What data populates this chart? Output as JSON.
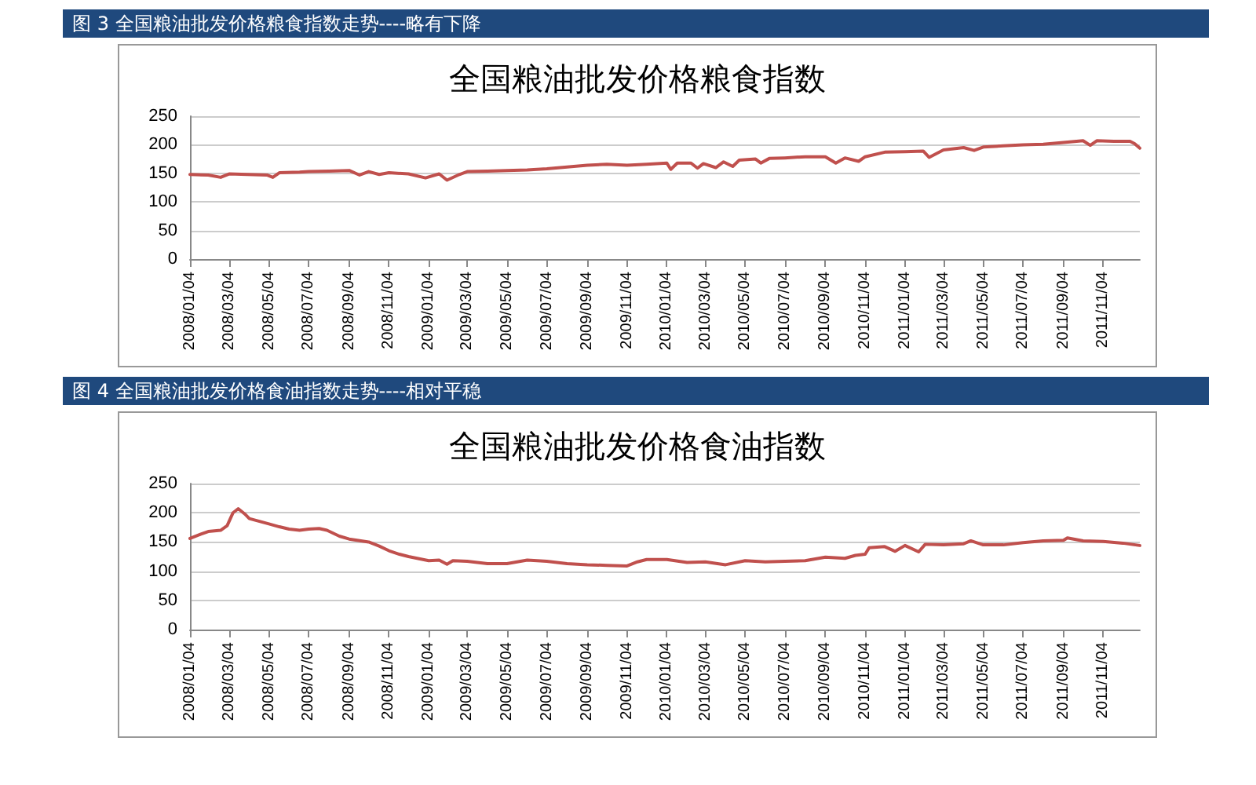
{
  "chart_data": [
    {
      "type": "line",
      "title": "全国粮油批发价格粮食指数",
      "subtitle": "图 3 全国粮油批发价格粮食指数走势----略有下降",
      "x": [
        "2008-01-04",
        "2008-02-01",
        "2008-02-20",
        "2008-03-04",
        "2008-04-01",
        "2008-05-01",
        "2008-05-10",
        "2008-05-20",
        "2008-06-20",
        "2008-07-04",
        "2008-08-04",
        "2008-09-04",
        "2008-09-20",
        "2008-10-04",
        "2008-10-20",
        "2008-11-04",
        "2008-12-04",
        "2008-12-30",
        "2009-01-20",
        "2009-02-01",
        "2009-02-20",
        "2009-03-04",
        "2009-04-04",
        "2009-05-04",
        "2009-06-04",
        "2009-07-04",
        "2009-08-04",
        "2009-09-04",
        "2009-10-04",
        "2009-11-04",
        "2009-12-04",
        "2010-01-04",
        "2010-01-10",
        "2010-01-20",
        "2010-02-10",
        "2010-02-20",
        "2010-03-01",
        "2010-03-20",
        "2010-04-01",
        "2010-04-15",
        "2010-04-25",
        "2010-05-20",
        "2010-05-28",
        "2010-06-10",
        "2010-07-04",
        "2010-08-04",
        "2010-09-04",
        "2010-09-20",
        "2010-10-04",
        "2010-10-25",
        "2010-11-04",
        "2010-12-04",
        "2011-01-04",
        "2011-02-01",
        "2011-02-10",
        "2011-03-04",
        "2011-04-04",
        "2011-04-20",
        "2011-05-04",
        "2011-06-04",
        "2011-07-04",
        "2011-08-04",
        "2011-09-04",
        "2011-10-04",
        "2011-10-15",
        "2011-10-25",
        "2011-11-20",
        "2011-12-15",
        "2011-12-22",
        "2011-12-30"
      ],
      "series": [
        {
          "color": "#c0504d",
          "values": [
            148,
            147,
            143,
            149,
            148,
            147,
            143,
            151,
            152,
            153,
            154,
            155,
            147,
            153,
            148,
            151,
            149,
            142,
            149,
            138,
            148,
            153,
            154,
            155,
            156,
            158,
            161,
            164,
            166,
            164,
            166,
            168,
            157,
            168,
            168,
            159,
            167,
            160,
            170,
            162,
            173,
            175,
            168,
            176,
            177,
            179,
            179,
            168,
            177,
            171,
            179,
            187,
            188,
            189,
            178,
            191,
            195,
            190,
            196,
            198,
            200,
            201,
            204,
            207,
            199,
            207,
            206,
            206,
            202,
            194
          ]
        }
      ],
      "xlim": [
        "2008-01-04",
        "2011-12-30"
      ],
      "xticks": [
        {
          "value": "2008-01-04",
          "label": "2008/01/04"
        },
        {
          "value": "2008-03-04",
          "label": "2008/03/04"
        },
        {
          "value": "2008-05-04",
          "label": "2008/05/04"
        },
        {
          "value": "2008-07-04",
          "label": "2008/07/04"
        },
        {
          "value": "2008-09-04",
          "label": "2008/09/04"
        },
        {
          "value": "2008-11-04",
          "label": "2008/11/04"
        },
        {
          "value": "2009-01-04",
          "label": "2009/01/04"
        },
        {
          "value": "2009-03-04",
          "label": "2009/03/04"
        },
        {
          "value": "2009-05-04",
          "label": "2009/05/04"
        },
        {
          "value": "2009-07-04",
          "label": "2009/07/04"
        },
        {
          "value": "2009-09-04",
          "label": "2009/09/04"
        },
        {
          "value": "2009-11-04",
          "label": "2009/11/04"
        },
        {
          "value": "2010-01-04",
          "label": "2010/01/04"
        },
        {
          "value": "2010-03-04",
          "label": "2010/03/04"
        },
        {
          "value": "2010-05-04",
          "label": "2010/05/04"
        },
        {
          "value": "2010-07-04",
          "label": "2010/07/04"
        },
        {
          "value": "2010-09-04",
          "label": "2010/09/04"
        },
        {
          "value": "2010-11-04",
          "label": "2010/11/04"
        },
        {
          "value": "2011-01-04",
          "label": "2011/01/04"
        },
        {
          "value": "2011-03-04",
          "label": "2011/03/04"
        },
        {
          "value": "2011-05-04",
          "label": "2011/05/04"
        },
        {
          "value": "2011-07-04",
          "label": "2011/07/04"
        },
        {
          "value": "2011-09-04",
          "label": "2011/09/04"
        },
        {
          "value": "2011-11-04",
          "label": "2011/11/04"
        }
      ],
      "ylim": [
        0,
        250
      ],
      "yticks": [
        0,
        50,
        100,
        150,
        200,
        250
      ],
      "grid": "y",
      "marker": "none",
      "line_style": "solid"
    },
    {
      "type": "line",
      "title": "全国粮油批发价格食油指数",
      "subtitle": "图 4 全国粮油批发价格食油指数走势----相对平稳",
      "x": [
        "2008-01-04",
        "2008-01-20",
        "2008-02-01",
        "2008-02-20",
        "2008-03-01",
        "2008-03-10",
        "2008-03-18",
        "2008-03-28",
        "2008-04-04",
        "2008-05-04",
        "2008-05-20",
        "2008-06-04",
        "2008-06-20",
        "2008-07-04",
        "2008-07-20",
        "2008-08-01",
        "2008-08-20",
        "2008-09-04",
        "2008-10-04",
        "2008-10-20",
        "2008-11-04",
        "2008-11-20",
        "2008-12-04",
        "2009-01-04",
        "2009-01-20",
        "2009-02-01",
        "2009-02-10",
        "2009-03-04",
        "2009-04-04",
        "2009-05-04",
        "2009-06-04",
        "2009-07-04",
        "2009-08-04",
        "2009-09-04",
        "2009-10-04",
        "2009-11-04",
        "2009-11-20",
        "2009-12-04",
        "2010-01-04",
        "2010-02-04",
        "2010-03-04",
        "2010-04-04",
        "2010-05-04",
        "2010-06-04",
        "2010-07-04",
        "2010-08-04",
        "2010-09-04",
        "2010-10-04",
        "2010-10-20",
        "2010-11-04",
        "2010-11-10",
        "2010-12-04",
        "2010-12-20",
        "2011-01-04",
        "2011-01-25",
        "2011-02-04",
        "2011-03-04",
        "2011-04-04",
        "2011-04-15",
        "2011-05-04",
        "2011-06-04",
        "2011-07-04",
        "2011-08-04",
        "2011-09-04",
        "2011-09-10",
        "2011-10-04",
        "2011-11-04",
        "2011-12-04",
        "2011-12-30"
      ],
      "series": [
        {
          "color": "#c0504d",
          "values": [
            156,
            163,
            168,
            170,
            178,
            200,
            207,
            198,
            190,
            181,
            176,
            172,
            170,
            172,
            173,
            170,
            160,
            155,
            150,
            143,
            135,
            129,
            125,
            118,
            119,
            112,
            118,
            117,
            113,
            113,
            119,
            117,
            113,
            111,
            110,
            109,
            116,
            120,
            120,
            115,
            116,
            111,
            118,
            116,
            117,
            118,
            124,
            122,
            127,
            129,
            140,
            142,
            134,
            144,
            133,
            146,
            145,
            147,
            152,
            145,
            145,
            149,
            152,
            153,
            157,
            152,
            151,
            148,
            144
          ]
        }
      ],
      "xlim": [
        "2008-01-04",
        "2011-12-30"
      ],
      "xticks": [
        {
          "value": "2008-01-04",
          "label": "2008/01/04"
        },
        {
          "value": "2008-03-04",
          "label": "2008/03/04"
        },
        {
          "value": "2008-05-04",
          "label": "2008/05/04"
        },
        {
          "value": "2008-07-04",
          "label": "2008/07/04"
        },
        {
          "value": "2008-09-04",
          "label": "2008/09/04"
        },
        {
          "value": "2008-11-04",
          "label": "2008/11/04"
        },
        {
          "value": "2009-01-04",
          "label": "2009/01/04"
        },
        {
          "value": "2009-03-04",
          "label": "2009/03/04"
        },
        {
          "value": "2009-05-04",
          "label": "2009/05/04"
        },
        {
          "value": "2009-07-04",
          "label": "2009/07/04"
        },
        {
          "value": "2009-09-04",
          "label": "2009/09/04"
        },
        {
          "value": "2009-11-04",
          "label": "2009/11/04"
        },
        {
          "value": "2010-01-04",
          "label": "2010/01/04"
        },
        {
          "value": "2010-03-04",
          "label": "2010/03/04"
        },
        {
          "value": "2010-05-04",
          "label": "2010/05/04"
        },
        {
          "value": "2010-07-04",
          "label": "2010/07/04"
        },
        {
          "value": "2010-09-04",
          "label": "2010/09/04"
        },
        {
          "value": "2010-11-04",
          "label": "2010/11/04"
        },
        {
          "value": "2011-01-04",
          "label": "2011/01/04"
        },
        {
          "value": "2011-03-04",
          "label": "2011/03/04"
        },
        {
          "value": "2011-05-04",
          "label": "2011/05/04"
        },
        {
          "value": "2011-07-04",
          "label": "2011/07/04"
        },
        {
          "value": "2011-09-04",
          "label": "2011/09/04"
        },
        {
          "value": "2011-11-04",
          "label": "2011/11/04"
        }
      ],
      "ylim": [
        0,
        250
      ],
      "yticks": [
        0,
        50,
        100,
        150,
        200,
        250
      ],
      "grid": "y",
      "marker": "none",
      "line_style": "solid"
    }
  ]
}
